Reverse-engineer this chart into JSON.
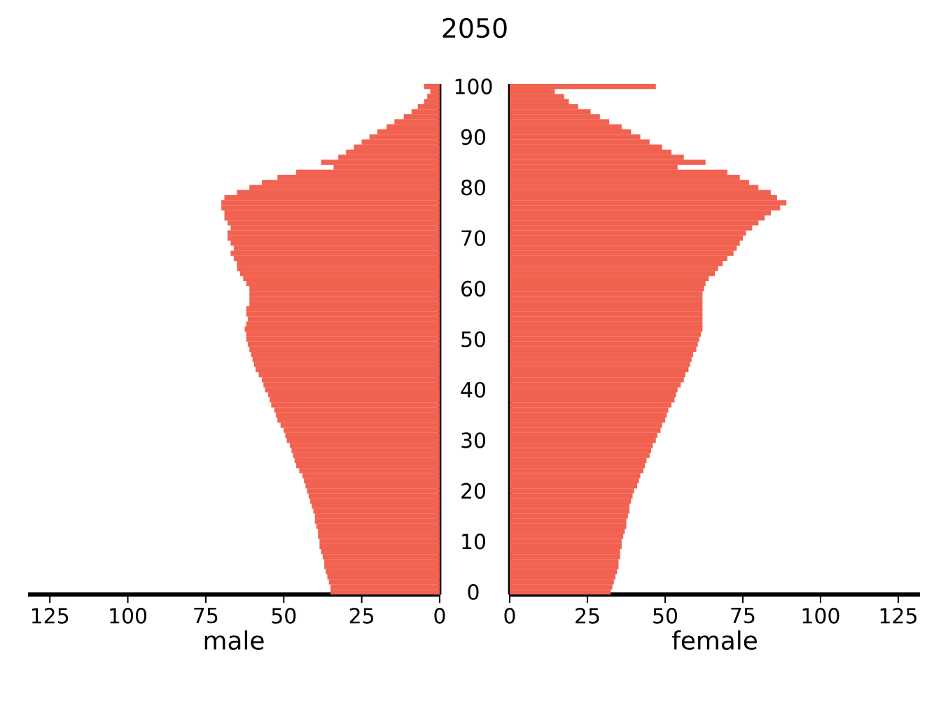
{
  "chart_data": [
    {
      "type": "bar",
      "orientation": "horizontal",
      "title": "2050",
      "xlabel": "male",
      "color": "#f26250",
      "xlim": [
        132,
        0
      ],
      "xticks": [
        0,
        25,
        50,
        75,
        100,
        125
      ],
      "tick_labels": "x",
      "categories": [
        "100",
        null,
        null,
        null,
        null,
        null,
        null,
        null,
        null,
        null,
        "90",
        null,
        null,
        null,
        null,
        null,
        null,
        null,
        null,
        null,
        "80",
        null,
        null,
        null,
        null,
        null,
        null,
        null,
        null,
        null,
        "70",
        null,
        null,
        null,
        null,
        null,
        null,
        null,
        null,
        null,
        "60",
        null,
        null,
        null,
        null,
        null,
        null,
        null,
        null,
        null,
        "50",
        null,
        null,
        null,
        null,
        null,
        null,
        null,
        null,
        null,
        "40",
        null,
        null,
        null,
        null,
        null,
        null,
        null,
        null,
        null,
        "30",
        null,
        null,
        null,
        null,
        null,
        null,
        null,
        null,
        null,
        "20",
        null,
        null,
        null,
        null,
        null,
        null,
        null,
        null,
        null,
        "10",
        null,
        null,
        null,
        null,
        null,
        null,
        null,
        null,
        null,
        "0"
      ],
      "values": [
        5,
        3,
        4,
        5,
        7,
        9,
        11.5,
        14.5,
        17,
        20,
        22.5,
        25,
        27.5,
        30,
        32.5,
        38,
        34,
        46,
        52,
        57,
        61,
        65,
        69,
        70,
        70,
        69,
        69,
        68,
        67,
        68,
        68,
        67,
        66,
        67,
        66,
        65,
        65,
        64,
        63,
        62,
        61,
        61,
        61,
        61,
        62,
        62,
        61.5,
        62,
        62.5,
        62,
        62,
        61.5,
        61,
        60.5,
        60,
        59.5,
        59,
        58,
        57,
        56.5,
        56,
        55,
        54.5,
        54,
        53,
        52.5,
        52,
        51,
        50,
        49.5,
        49,
        48,
        47.5,
        47,
        46.5,
        46,
        45,
        44,
        43.5,
        43,
        42.5,
        42,
        41.5,
        41,
        40.5,
        40,
        40,
        39.5,
        39,
        39,
        38.5,
        38.5,
        38,
        37.5,
        37,
        37,
        36.5,
        36,
        35.5,
        35,
        35
      ]
    },
    {
      "type": "bar",
      "orientation": "horizontal",
      "xlabel": "female",
      "color": "#f26250",
      "xlim": [
        0,
        132
      ],
      "xticks": [
        0,
        25,
        50,
        75,
        100,
        125
      ],
      "categories": [
        "100",
        null,
        null,
        null,
        null,
        null,
        null,
        null,
        null,
        null,
        "90",
        null,
        null,
        null,
        null,
        null,
        null,
        null,
        null,
        null,
        "80",
        null,
        null,
        null,
        null,
        null,
        null,
        null,
        null,
        null,
        "70",
        null,
        null,
        null,
        null,
        null,
        null,
        null,
        null,
        null,
        "60",
        null,
        null,
        null,
        null,
        null,
        null,
        null,
        null,
        null,
        "50",
        null,
        null,
        null,
        null,
        null,
        null,
        null,
        null,
        null,
        "40",
        null,
        null,
        null,
        null,
        null,
        null,
        null,
        null,
        null,
        "30",
        null,
        null,
        null,
        null,
        null,
        null,
        null,
        null,
        null,
        "20",
        null,
        null,
        null,
        null,
        null,
        null,
        null,
        null,
        null,
        "10",
        null,
        null,
        null,
        null,
        null,
        null,
        null,
        null,
        null,
        "0"
      ],
      "values": [
        47,
        14.5,
        17.5,
        19,
        22,
        26,
        29,
        32,
        36,
        39,
        42,
        45,
        49,
        52,
        56,
        63,
        54,
        70,
        74,
        77,
        80,
        84,
        86,
        89,
        87,
        84,
        82,
        80,
        78,
        76,
        75,
        74,
        73,
        72,
        70,
        68.5,
        67,
        66,
        64,
        63,
        62.5,
        62,
        62,
        62,
        62,
        62,
        62,
        62,
        62,
        61.5,
        61,
        60.5,
        60,
        59,
        58.5,
        58,
        57.5,
        56.5,
        56,
        55,
        54,
        53.5,
        53,
        52,
        51,
        50.5,
        50,
        49,
        48.5,
        47.5,
        47,
        46,
        45.5,
        45,
        44,
        43.5,
        43,
        42,
        41.5,
        41,
        40,
        39.5,
        39,
        38.5,
        38.5,
        38,
        37.5,
        37.5,
        37,
        36.5,
        36,
        36,
        35.5,
        35.5,
        35,
        35,
        34.5,
        34,
        33.5,
        33,
        32.5
      ]
    }
  ]
}
